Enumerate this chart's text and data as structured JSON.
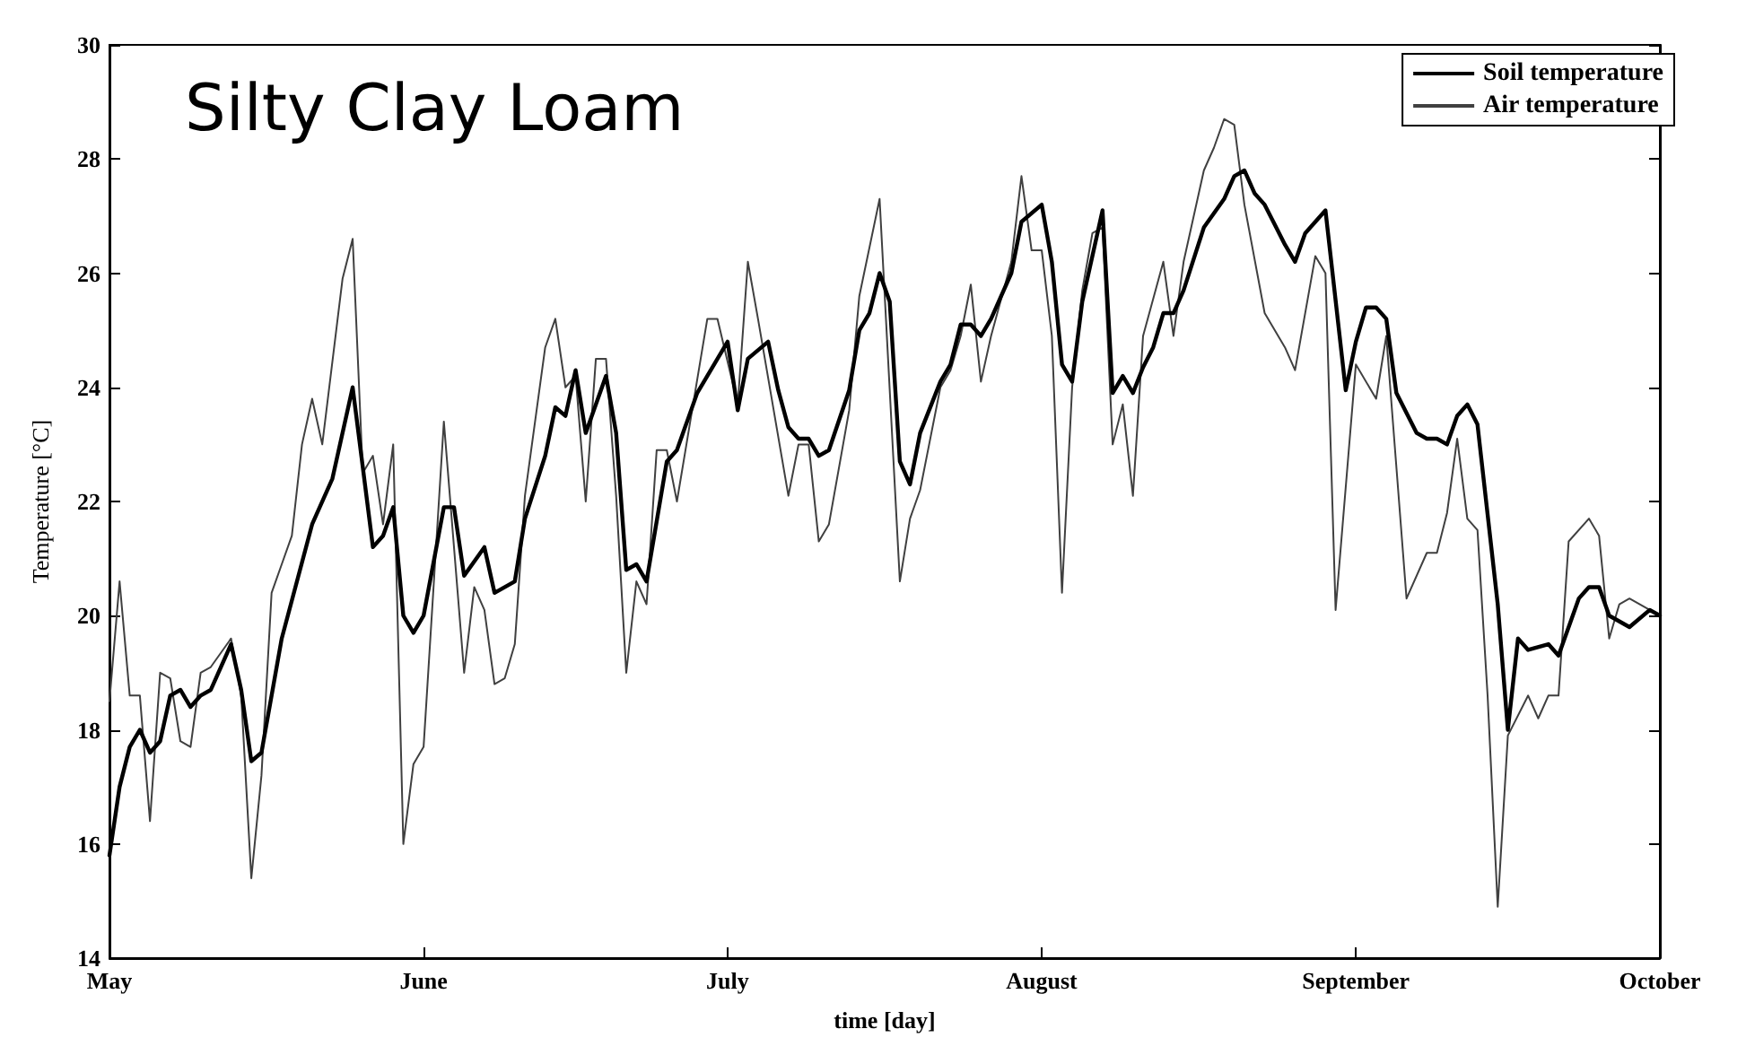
{
  "chart_data": {
    "type": "line",
    "title": "Silty Clay Loam",
    "xlabel": "time [day]",
    "ylabel": "Temperature [°C]",
    "xlim": [
      "--05-01",
      "--10-01"
    ],
    "xticks": [
      {
        "value": "--05-01",
        "label": "May"
      },
      {
        "value": "--06-01",
        "label": "June"
      },
      {
        "value": "--07-01",
        "label": "July"
      },
      {
        "value": "--08-01",
        "label": "August"
      },
      {
        "value": "--09-01",
        "label": "September"
      },
      {
        "value": "--10-01",
        "label": "October"
      }
    ],
    "ylim": [
      14,
      30
    ],
    "yticks": [
      14,
      16,
      18,
      20,
      22,
      24,
      26,
      28,
      30
    ],
    "grid": false,
    "legend": "top right",
    "marker": "none",
    "line_style": "solid",
    "series": [
      {
        "name": "Soil temperature",
        "color": "#000000",
        "x": [
          "--05-01",
          "--05-02",
          "--05-03",
          "--05-04",
          "--05-05",
          "--05-06",
          "--05-07",
          "--05-08",
          "--05-09",
          "--05-10",
          "--05-11",
          "--05-13",
          "--05-14",
          "--05-15",
          "--05-16",
          "--05-18",
          "--05-21",
          "--05-23",
          "--05-25",
          "--05-27",
          "--05-28",
          "--05-29",
          "--05-30",
          "--05-31",
          "--06-01",
          "--06-03",
          "--06-04",
          "--06-05",
          "--06-07",
          "--06-08",
          "--06-10",
          "--06-11",
          "--06-13",
          "--06-14",
          "--06-15",
          "--06-16",
          "--06-17",
          "--06-19",
          "--06-20",
          "--06-21",
          "--06-22",
          "--06-23",
          "--06-25",
          "--06-26",
          "--06-28",
          "--07-01",
          "--07-02",
          "--07-03",
          "--07-05",
          "--07-06",
          "--07-07",
          "--07-08",
          "--07-09",
          "--07-10",
          "--07-11",
          "--07-13",
          "--07-14",
          "--07-15",
          "--07-16",
          "--07-17",
          "--07-18",
          "--07-19",
          "--07-20",
          "--07-22",
          "--07-23",
          "--07-24",
          "--07-25",
          "--07-26",
          "--07-27",
          "--07-29",
          "--07-30",
          "--08-01",
          "--08-02",
          "--08-03",
          "--08-04",
          "--08-05",
          "--08-07",
          "--08-08",
          "--08-09",
          "--08-10",
          "--08-11",
          "--08-12",
          "--08-13",
          "--08-14",
          "--08-15",
          "--08-17",
          "--08-19",
          "--08-20",
          "--08-21",
          "--08-22",
          "--08-23",
          "--08-25",
          "--08-26",
          "--08-27",
          "--08-28",
          "--08-29",
          "--08-31",
          "--09-01",
          "--09-02",
          "--09-03",
          "--09-04",
          "--09-05",
          "--09-07",
          "--09-08",
          "--09-09",
          "--09-10",
          "--09-11",
          "--09-12",
          "--09-13",
          "--09-15",
          "--09-16",
          "--09-17",
          "--09-18",
          "--09-20",
          "--09-21",
          "--09-23",
          "--09-24",
          "--09-25",
          "--09-26",
          "--09-28",
          "--09-30",
          "--10-01"
        ],
        "values": [
          15.8,
          17.0,
          17.7,
          18.0,
          17.6,
          17.8,
          18.6,
          18.7,
          18.4,
          18.6,
          18.7,
          19.5,
          18.7,
          17.45,
          17.6,
          19.6,
          21.6,
          22.4,
          24.0,
          21.2,
          21.4,
          21.9,
          20.0,
          19.7,
          20.0,
          21.9,
          21.9,
          20.7,
          21.2,
          20.4,
          20.6,
          21.7,
          22.8,
          23.65,
          23.5,
          24.3,
          23.2,
          24.2,
          23.2,
          20.8,
          20.9,
          20.6,
          22.7,
          22.9,
          23.9,
          24.8,
          23.6,
          24.5,
          24.8,
          23.95,
          23.3,
          23.1,
          23.1,
          22.8,
          22.9,
          23.95,
          25.0,
          25.3,
          26.0,
          25.5,
          22.7,
          22.3,
          23.2,
          24.1,
          24.4,
          25.1,
          25.1,
          24.9,
          25.2,
          26.0,
          26.9,
          27.2,
          26.2,
          24.4,
          24.1,
          25.5,
          27.1,
          23.9,
          24.2,
          23.9,
          24.35,
          24.7,
          25.3,
          25.3,
          25.7,
          26.8,
          27.3,
          27.7,
          27.8,
          27.4,
          27.2,
          26.5,
          26.2,
          26.7,
          26.9,
          27.1,
          23.95,
          24.8,
          25.4,
          25.4,
          25.2,
          23.9,
          23.2,
          23.1,
          23.1,
          23.0,
          23.5,
          23.7,
          23.35,
          20.2,
          18.0,
          19.6,
          19.4,
          19.5,
          19.3,
          20.3,
          20.5,
          20.5,
          20.0,
          19.8,
          20.1,
          20.0
        ]
      },
      {
        "name": "Air temperature",
        "color": "#404040",
        "x": [
          "--05-01",
          "--05-02",
          "--05-03",
          "--05-04",
          "--05-05",
          "--05-06",
          "--05-07",
          "--05-08",
          "--05-09",
          "--05-10",
          "--05-11",
          "--05-13",
          "--05-14",
          "--05-15",
          "--05-16",
          "--05-17",
          "--05-18",
          "--05-19",
          "--05-20",
          "--05-21",
          "--05-22",
          "--05-24",
          "--05-25",
          "--05-26",
          "--05-27",
          "--05-28",
          "--05-29",
          "--05-30",
          "--05-31",
          "--06-01",
          "--06-03",
          "--06-05",
          "--06-06",
          "--06-07",
          "--06-08",
          "--06-09",
          "--06-10",
          "--06-11",
          "--06-13",
          "--06-14",
          "--06-15",
          "--06-16",
          "--06-17",
          "--06-18",
          "--06-19",
          "--06-20",
          "--06-21",
          "--06-22",
          "--06-23",
          "--06-24",
          "--06-25",
          "--06-26",
          "--06-29",
          "--06-30",
          "--07-02",
          "--07-03",
          "--07-04",
          "--07-07",
          "--07-08",
          "--07-09",
          "--07-10",
          "--07-11",
          "--07-13",
          "--07-14",
          "--07-16",
          "--07-18",
          "--07-19",
          "--07-20",
          "--07-22",
          "--07-23",
          "--07-24",
          "--07-25",
          "--07-26",
          "--07-27",
          "--07-29",
          "--07-30",
          "--07-31",
          "--08-01",
          "--08-02",
          "--08-03",
          "--08-04",
          "--08-05",
          "--08-06",
          "--08-07",
          "--08-08",
          "--08-09",
          "--08-10",
          "--08-11",
          "--08-13",
          "--08-14",
          "--08-15",
          "--08-17",
          "--08-18",
          "--08-19",
          "--08-20",
          "--08-21",
          "--08-23",
          "--08-25",
          "--08-26",
          "--08-28",
          "--08-29",
          "--08-30",
          "--09-01",
          "--09-03",
          "--09-04",
          "--09-06",
          "--09-08",
          "--09-09",
          "--09-10",
          "--09-11",
          "--09-12",
          "--09-13",
          "--09-14",
          "--09-15",
          "--09-16",
          "--09-18",
          "--09-19",
          "--09-20",
          "--09-21",
          "--09-22",
          "--09-24",
          "--09-25",
          "--09-26",
          "--09-27",
          "--09-28",
          "--09-30",
          "--10-01"
        ],
        "values": [
          18.5,
          20.6,
          18.6,
          18.6,
          16.4,
          19.0,
          18.9,
          17.8,
          17.7,
          19.0,
          19.1,
          19.6,
          18.6,
          15.4,
          17.2,
          20.4,
          20.9,
          21.4,
          23.0,
          23.8,
          23.0,
          25.9,
          26.6,
          22.5,
          22.8,
          21.6,
          23.0,
          16.0,
          17.4,
          17.7,
          23.4,
          19.0,
          20.5,
          20.1,
          18.8,
          18.9,
          19.5,
          22.1,
          24.7,
          25.2,
          24.0,
          24.2,
          22.0,
          24.5,
          24.5,
          22.1,
          19.0,
          20.6,
          20.2,
          22.9,
          22.9,
          22.0,
          25.2,
          25.2,
          23.7,
          26.2,
          25.2,
          22.1,
          23.0,
          23.0,
          21.3,
          21.6,
          23.6,
          25.6,
          27.3,
          20.6,
          21.7,
          22.2,
          24.0,
          24.3,
          24.9,
          25.8,
          24.1,
          24.9,
          26.2,
          27.7,
          26.4,
          26.4,
          24.9,
          20.4,
          24.0,
          25.7,
          26.7,
          26.8,
          23.0,
          23.7,
          22.1,
          24.9,
          26.2,
          24.9,
          26.2,
          27.8,
          28.2,
          28.7,
          28.6,
          27.2,
          25.3,
          24.7,
          24.3,
          26.3,
          26.0,
          20.1,
          24.4,
          23.8,
          24.9,
          20.3,
          21.1,
          21.1,
          21.8,
          23.1,
          21.7,
          21.5,
          18.6,
          14.9,
          17.9,
          18.6,
          18.2,
          18.6,
          18.6,
          21.3,
          21.7,
          21.4,
          19.6,
          20.2,
          20.3,
          20.1,
          20.0
        ]
      }
    ]
  }
}
